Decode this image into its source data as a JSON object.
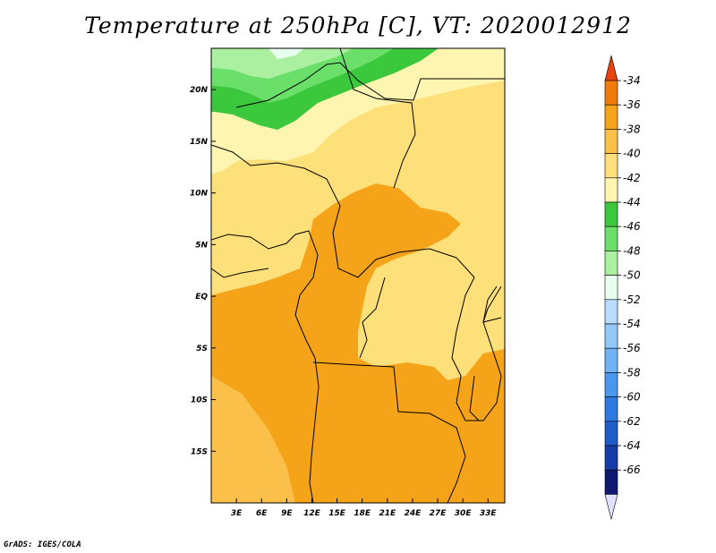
{
  "title": "Temperature at 250hPa [C], VT: 2020012912",
  "credit": "GrADS: IGES/COLA",
  "map": {
    "lon_range": [
      0,
      35
    ],
    "lat_range": [
      -20,
      24
    ],
    "lon_ticks": [
      {
        "lon": 3,
        "label": "3E"
      },
      {
        "lon": 6,
        "label": "6E"
      },
      {
        "lon": 9,
        "label": "9E"
      },
      {
        "lon": 12,
        "label": "12E"
      },
      {
        "lon": 15,
        "label": "15E"
      },
      {
        "lon": 18,
        "label": "18E"
      },
      {
        "lon": 21,
        "label": "21E"
      },
      {
        "lon": 24,
        "label": "24E"
      },
      {
        "lon": 27,
        "label": "27E"
      },
      {
        "lon": 30,
        "label": "30E"
      },
      {
        "lon": 33,
        "label": "33E"
      }
    ],
    "lat_ticks": [
      {
        "lat": 20,
        "label": "20N"
      },
      {
        "lat": 15,
        "label": "15N"
      },
      {
        "lat": 10,
        "label": "10N"
      },
      {
        "lat": 5,
        "label": "5N"
      },
      {
        "lat": 0,
        "label": "EQ"
      },
      {
        "lat": -5,
        "label": "5S"
      },
      {
        "lat": -10,
        "label": "10S"
      },
      {
        "lat": -15,
        "label": "15S"
      }
    ]
  },
  "colorbar": {
    "labels": [
      "-34",
      "-36",
      "-38",
      "-40",
      "-42",
      "-44",
      "-46",
      "-48",
      "-50",
      "-52",
      "-54",
      "-56",
      "-58",
      "-60",
      "-62",
      "-64",
      "-66"
    ],
    "colors": [
      "#e8420f",
      "#f07a0a",
      "#f5a318",
      "#fac04a",
      "#fde07a",
      "#fef5b0",
      "#3cc83c",
      "#6ae06a",
      "#aaf0a0",
      "#e8fff0",
      "#b8dcfa",
      "#94c8f8",
      "#70b2f4",
      "#4a98ee",
      "#2e7ae0",
      "#1e5cc8",
      "#163caa",
      "#101a70",
      "#e0e0ff"
    ]
  }
}
